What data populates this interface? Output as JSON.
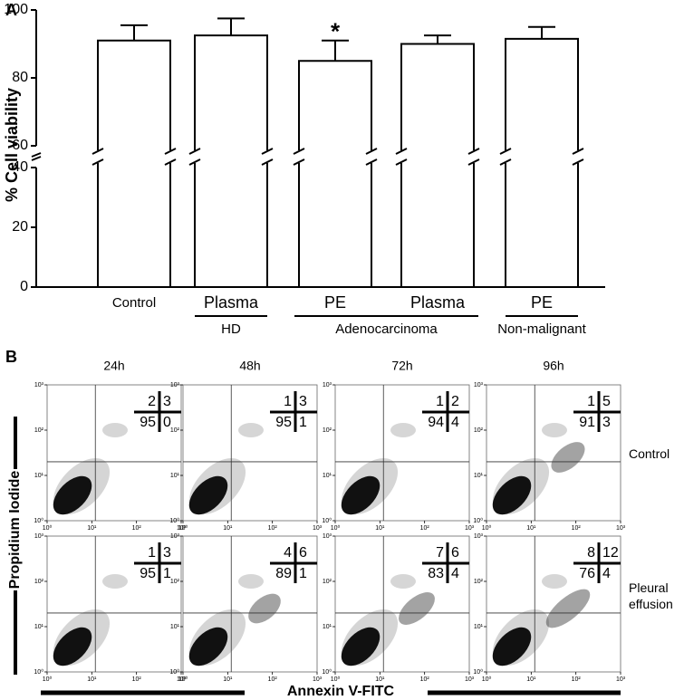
{
  "chart_data": [
    {
      "type": "bar",
      "panel": "A",
      "y_label": "% Cell viability",
      "categories": [
        "Control",
        "Plasma",
        "PE",
        "Plasma",
        "PE"
      ],
      "values": [
        91,
        92.5,
        85,
        90,
        91.5
      ],
      "errors": [
        4.5,
        5,
        6,
        2.5,
        3.5
      ],
      "significance": [
        null,
        null,
        "*",
        null,
        null
      ],
      "groups": [
        {
          "name": null,
          "size": 1
        },
        {
          "name": "HD",
          "size": 1
        },
        {
          "name": "Adenocarcinoma",
          "size": 2
        },
        {
          "name": "Non-malignant",
          "size": 1
        }
      ],
      "color": "#ffffff",
      "ylim": [
        0,
        100
      ],
      "yticks": [
        0,
        20,
        40,
        60,
        80,
        100
      ],
      "ybreak": [
        40,
        60
      ]
    },
    {
      "type": "flow-grid",
      "panel": "B",
      "x_label": "Annexin V-FITC",
      "y_label": "Propidium Iodide",
      "columns": [
        "24h",
        "48h",
        "72h",
        "96h"
      ],
      "rows": [
        {
          "name": "Control",
          "quadrants": [
            [
              2,
              3,
              95,
              0
            ],
            [
              1,
              3,
              95,
              1
            ],
            [
              1,
              2,
              94,
              4
            ],
            [
              1,
              5,
              91,
              3
            ]
          ]
        },
        {
          "name": "Pleural effusion",
          "quadrants": [
            [
              1,
              3,
              95,
              1
            ],
            [
              4,
              6,
              89,
              1
            ],
            [
              7,
              6,
              83,
              4
            ],
            [
              8,
              12,
              76,
              4
            ]
          ]
        }
      ],
      "log_scale": true,
      "xlim": [
        1,
        1000
      ],
      "ylim": [
        1,
        1000
      ],
      "xticks": [
        {
          "value": 1,
          "label": "10⁰"
        },
        {
          "value": 10,
          "label": "10¹"
        },
        {
          "value": 100,
          "label": "10²"
        },
        {
          "value": 1000,
          "label": "10³"
        }
      ],
      "yticks": [
        {
          "value": 1,
          "label": "10⁰"
        },
        {
          "value": 10,
          "label": "10¹"
        },
        {
          "value": 100,
          "label": "10²"
        },
        {
          "value": 1000,
          "label": "10³"
        }
      ],
      "gate": {
        "x": 12,
        "y": 20
      }
    }
  ]
}
